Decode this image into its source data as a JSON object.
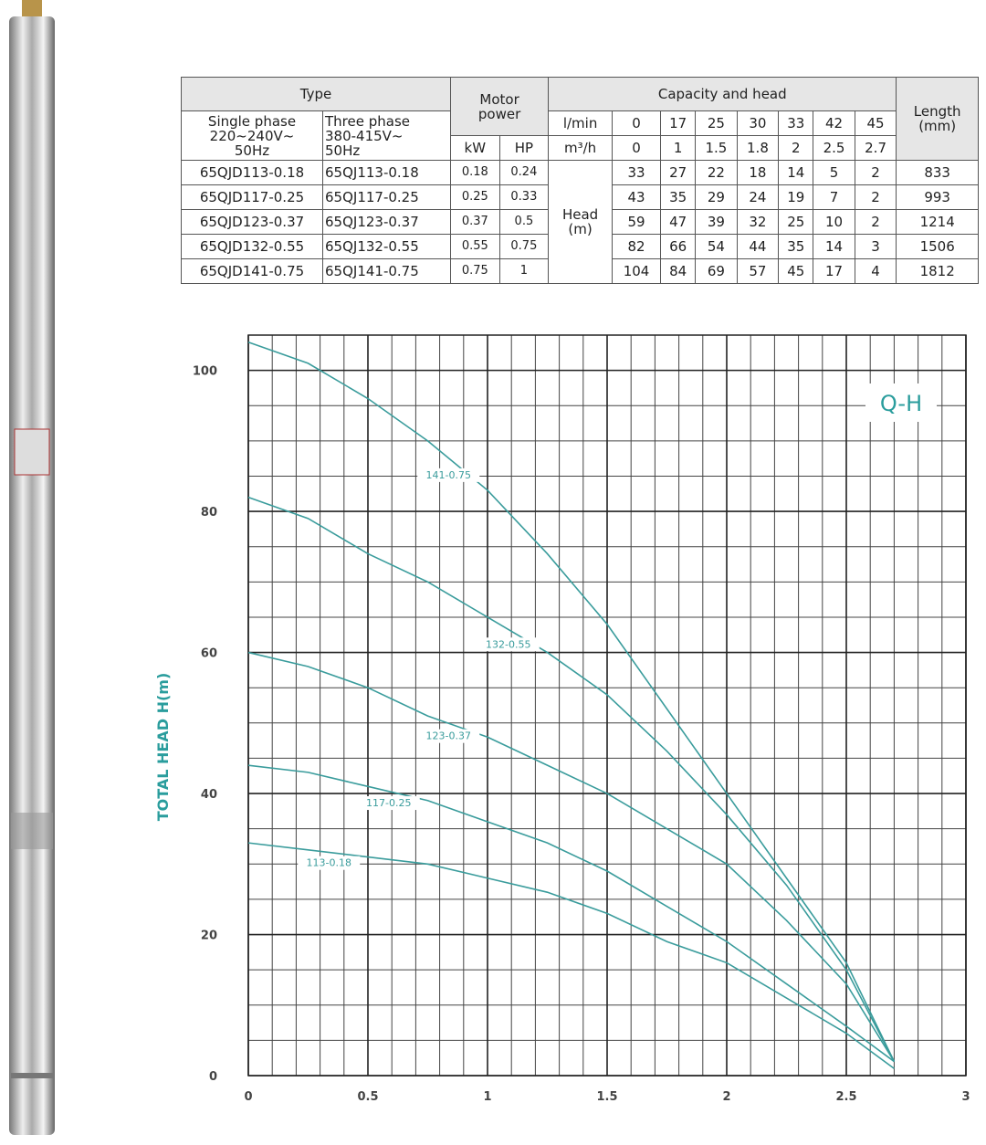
{
  "table": {
    "type_header": "Type",
    "motor_header": "Motor\npower",
    "capacity_header": "Capacity  and  head",
    "length_header": "Length\n(mm)",
    "single_phase": "Single phase\n220~240V~\n50Hz",
    "three_phase": "Three phase\n380-415V~\n50Hz",
    "kw": "kW",
    "hp": "HP",
    "lmin": "l/min",
    "m3h": "m³/h",
    "head_label": "Head\n(m)",
    "lmin_values": [
      0,
      17,
      25,
      30,
      33,
      42,
      45
    ],
    "m3h_values": [
      0,
      1,
      1.5,
      1.8,
      2,
      2.5,
      2.7
    ],
    "rows": [
      {
        "single": "65QJD113-0.18",
        "three": "65QJ113-0.18",
        "kw": 0.18,
        "hp": 0.24,
        "heads": [
          33,
          27,
          22,
          18,
          14,
          5,
          2
        ],
        "length": 833
      },
      {
        "single": "65QJD117-0.25",
        "three": "65QJ117-0.25",
        "kw": 0.25,
        "hp": 0.33,
        "heads": [
          43,
          35,
          29,
          24,
          19,
          7,
          2
        ],
        "length": 993
      },
      {
        "single": "65QJD123-0.37",
        "three": "65QJ123-0.37",
        "kw": 0.37,
        "hp": 0.5,
        "heads": [
          59,
          47,
          39,
          32,
          25,
          10,
          2
        ],
        "length": 1214
      },
      {
        "single": "65QJD132-0.55",
        "three": "65QJ132-0.55",
        "kw": 0.55,
        "hp": 0.75,
        "heads": [
          82,
          66,
          54,
          44,
          35,
          14,
          3
        ],
        "length": 1506
      },
      {
        "single": "65QJD141-0.75",
        "three": "65QJ141-0.75",
        "kw": 0.75,
        "hp": 1,
        "heads": [
          104,
          84,
          69,
          57,
          45,
          17,
          4
        ],
        "length": 1812
      }
    ]
  },
  "chart_data": {
    "type": "line",
    "y_label": "TOTAL HEAD H(m)",
    "annotation": "Q-H",
    "grid": true,
    "x": [
      0,
      0.25,
      0.5,
      0.75,
      1,
      1.25,
      1.5,
      1.75,
      2,
      2.25,
      2.5,
      2.7
    ],
    "xlim": [
      0,
      3
    ],
    "xticks": [
      0,
      0.5,
      1,
      1.5,
      2,
      2.5,
      3
    ],
    "ylim": [
      0,
      105
    ],
    "yticks": [
      0,
      20,
      40,
      60,
      80,
      100
    ],
    "series": [
      {
        "name": "141-0.75",
        "color": "#3a9c9c",
        "values": [
          104,
          101,
          96,
          90,
          83,
          74,
          64,
          52,
          40,
          28,
          16,
          2
        ]
      },
      {
        "name": "132-0.55",
        "color": "#3a9c9c",
        "values": [
          82,
          79,
          74,
          70,
          65,
          60,
          54,
          46,
          37,
          27,
          15,
          2
        ]
      },
      {
        "name": "123-0.37",
        "color": "#3a9c9c",
        "values": [
          60,
          58,
          55,
          51,
          48,
          44,
          40,
          35,
          30,
          22,
          13,
          2
        ]
      },
      {
        "name": "117-0.25",
        "color": "#3a9c9c",
        "values": [
          44,
          43,
          41,
          39,
          36,
          33,
          29,
          24,
          19,
          13,
          7,
          2
        ]
      },
      {
        "name": "113-0.18",
        "color": "#3a9c9c",
        "values": [
          33,
          32,
          31,
          30,
          28,
          26,
          23,
          19,
          16,
          11,
          6,
          1
        ]
      }
    ]
  }
}
